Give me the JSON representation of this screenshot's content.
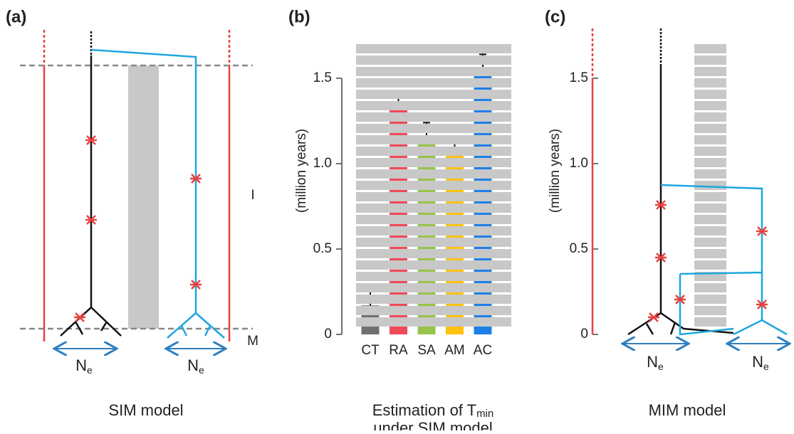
{
  "chart_data": {
    "type": "bar",
    "panel_label": "(b)",
    "ylabel": "(million years)",
    "categories": [
      "CT",
      "RA",
      "SA",
      "AM",
      "AC"
    ],
    "values": [
      0.17,
      1.32,
      1.14,
      1.1,
      1.55
    ],
    "errors": [
      0.08,
      0.09,
      0.1,
      0.06,
      0.09
    ],
    "colors": [
      "#707070",
      "#f0495a",
      "#97c34a",
      "#ffc20e",
      "#1f7fe8"
    ],
    "ylim": [
      0,
      1.7
    ],
    "yticks": [
      0,
      0.5,
      {
        "value": 1,
        "label": "1.0"
      },
      1.5
    ],
    "caption": {
      "line1": "Estimation of T",
      "line1_sub": "min",
      "line2": "under SIM model"
    }
  },
  "panels": {
    "a": {
      "label": "(a)",
      "caption": "SIM model",
      "interval_labels": [
        "I",
        "M"
      ],
      "ne_labels": [
        {
          "main": "N",
          "sub": "e"
        },
        {
          "main": "N",
          "sub": "e"
        }
      ]
    },
    "c": {
      "label": "(c)",
      "caption": "MIM model",
      "ylabel": "(million years)",
      "ylim": [
        0,
        1.7
      ],
      "yticks": [
        0,
        0.5,
        {
          "value": 1,
          "label": "1.0"
        },
        1.5
      ],
      "ne_labels": [
        {
          "main": "N",
          "sub": "e"
        },
        {
          "main": "N",
          "sub": "e"
        }
      ]
    }
  }
}
